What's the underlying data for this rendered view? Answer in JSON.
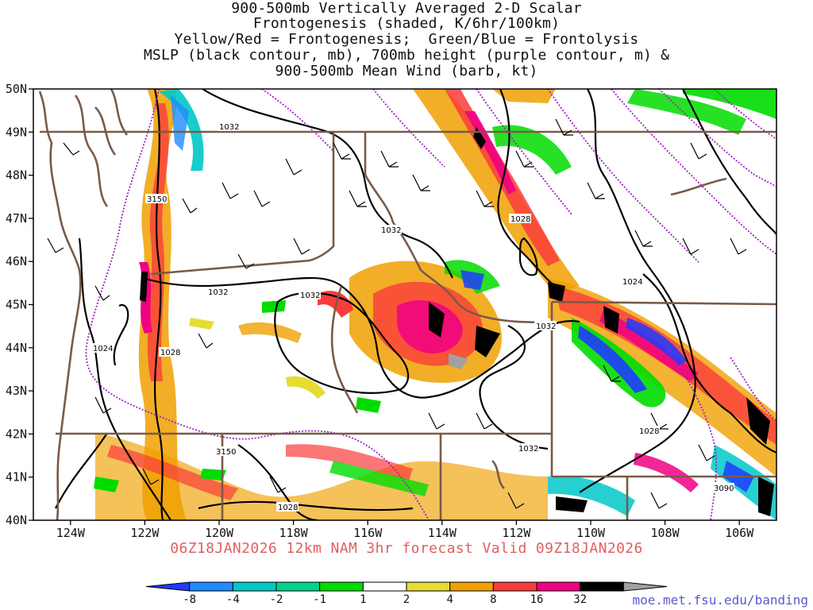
{
  "title_lines": [
    "900-500mb Vertically Averaged 2-D Scalar",
    "Frontogenesis (shaded, K/6hr/100km)",
    "Yellow/Red = Frontogenesis;  Green/Blue = Frontolysis",
    "MSLP (black contour, mb), 700mb height (purple contour, m) &",
    "900-500mb Mean Wind (barb, kt)"
  ],
  "valid_line": "06Z18JAN2026 12km NAM 3hr forecast Valid 09Z18JAN2026",
  "source_url": "moe.met.fsu.edu/banding",
  "map": {
    "lon_range": [
      -125,
      -105
    ],
    "lat_range": [
      40,
      50
    ],
    "lon_ticks": [
      "124W",
      "122W",
      "120W",
      "118W",
      "116W",
      "114W",
      "112W",
      "110W",
      "108W",
      "106W"
    ],
    "lat_ticks": [
      "50N",
      "49N",
      "48N",
      "47N",
      "46N",
      "45N",
      "44N",
      "43N",
      "42N",
      "41N",
      "40N"
    ]
  },
  "colors": {
    "mslp_contour": "#000000",
    "height_contour": "#a020c0",
    "borders": "#7a5a48",
    "valid_text": "#e06060"
  },
  "colorbar": {
    "ticks": [
      "-8",
      "-4",
      "-2",
      "-1",
      "1",
      "2",
      "4",
      "8",
      "16",
      "32"
    ],
    "bins": [
      "#1e3cff",
      "#1e8cff",
      "#00c8c8",
      "#00d28c",
      "#00dc00",
      "#ffffff",
      "#e6dc32",
      "#f0a000",
      "#fa3c3c",
      "#f00082",
      "#000000",
      "#a0a0a0"
    ]
  },
  "mslp_labels": [
    "1032",
    "1028",
    "1032",
    "1032",
    "1032",
    "1024",
    "1028",
    "1032",
    "1032",
    "1024",
    "1028",
    "1028"
  ],
  "height_labels": [
    "3150",
    "3150",
    "3090"
  ]
}
